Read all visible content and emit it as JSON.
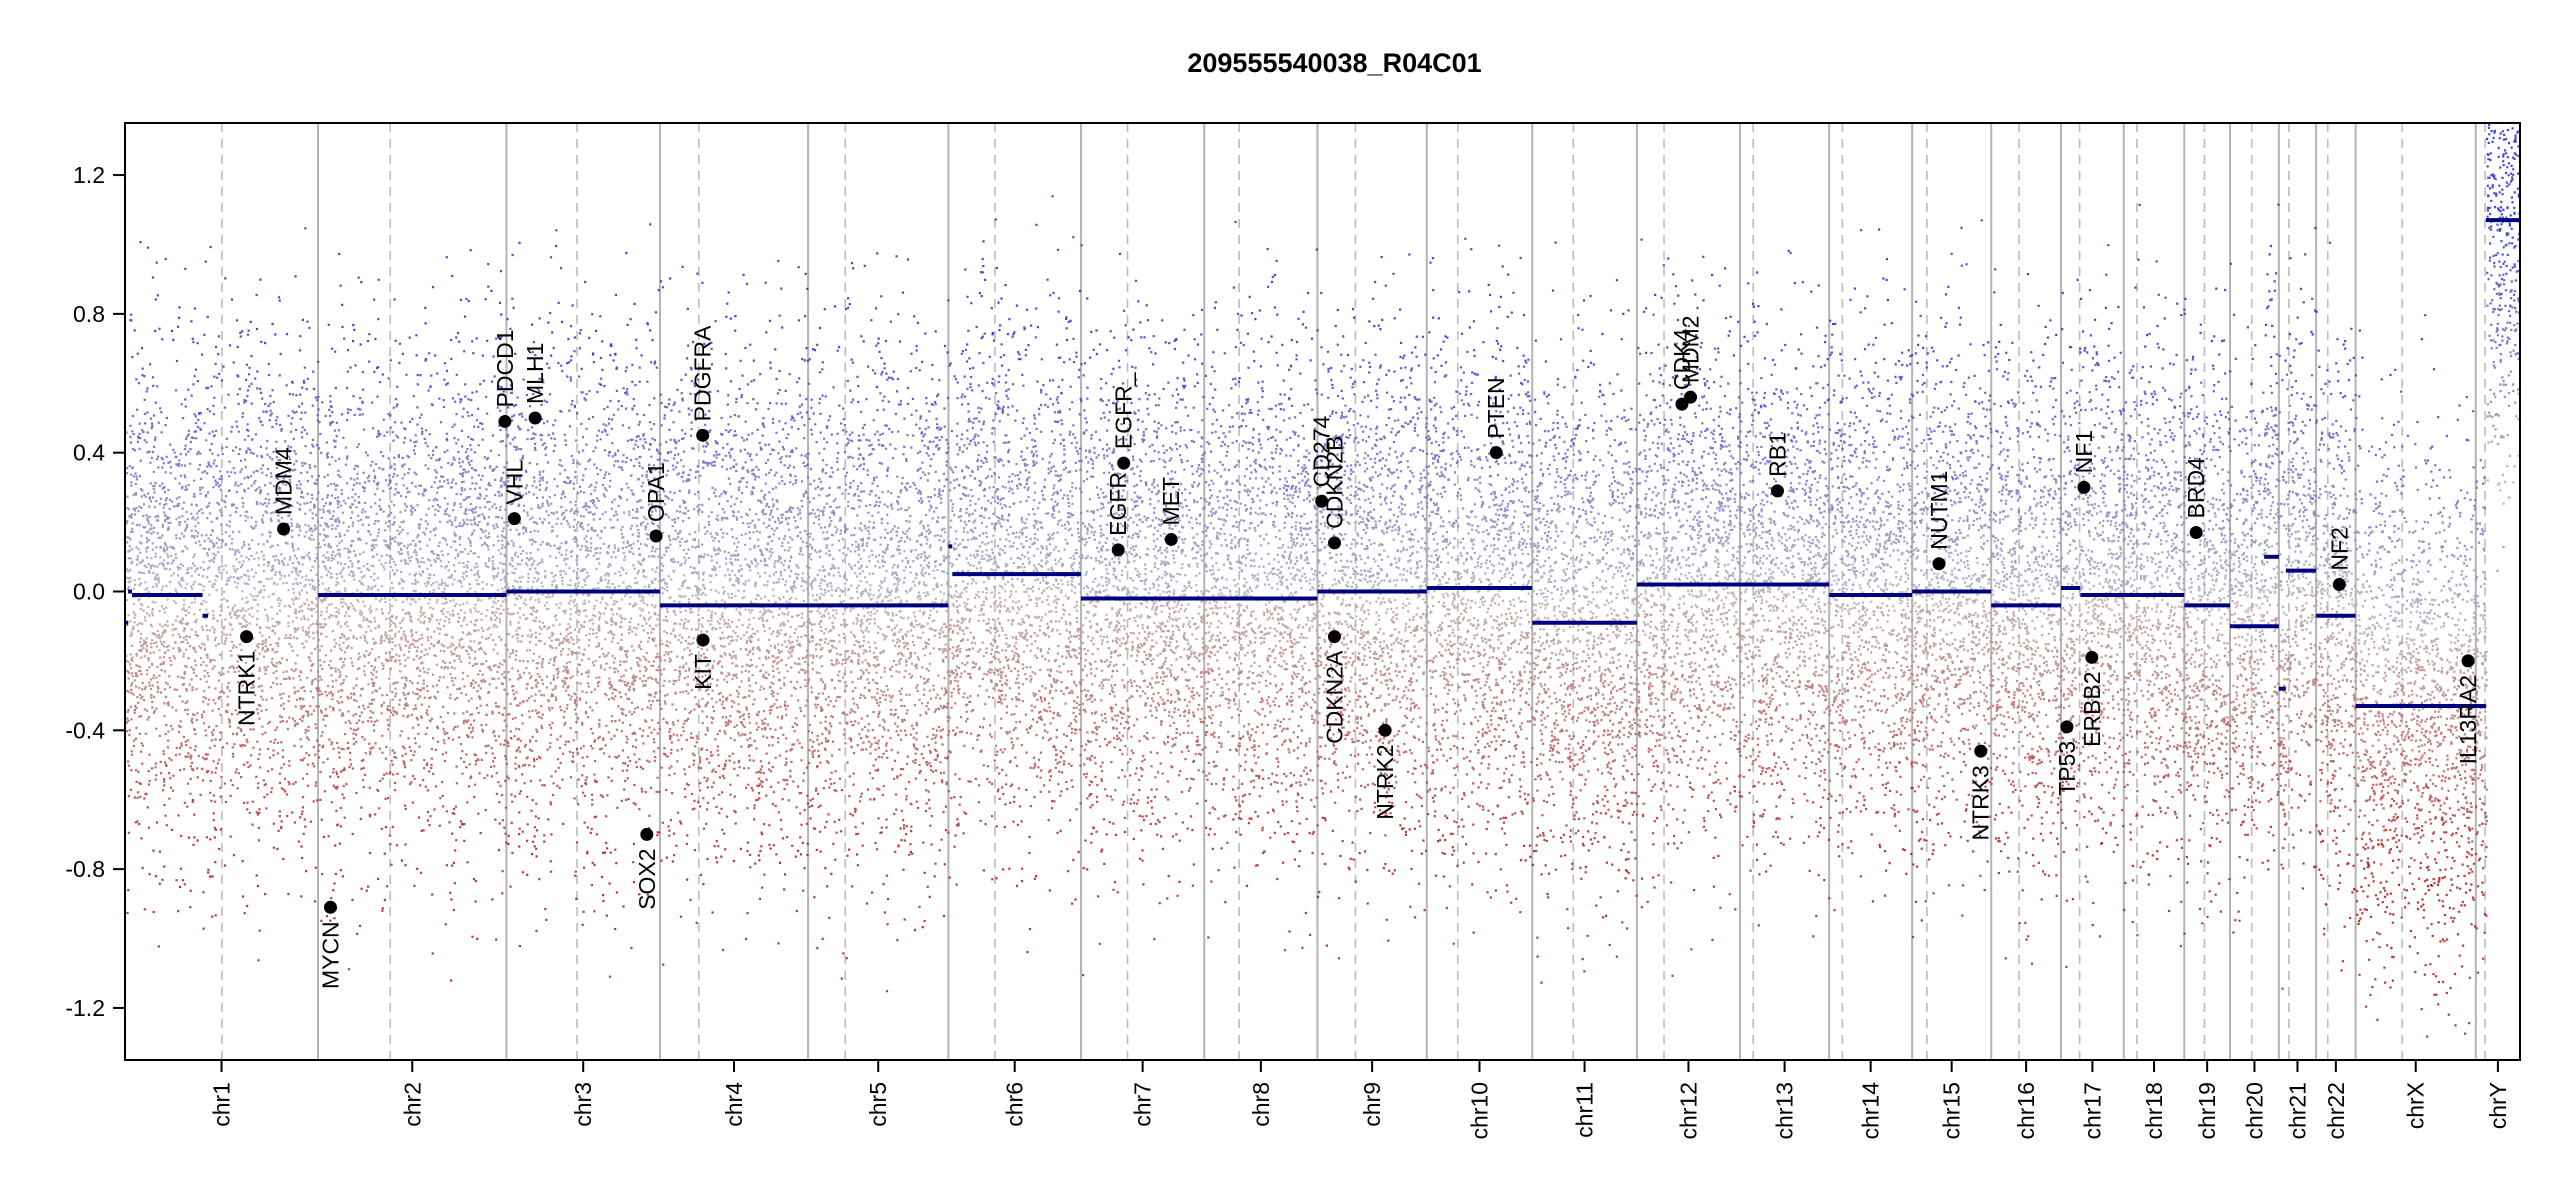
{
  "chart_data": {
    "type": "scatter",
    "title": "209555540038_R04C01",
    "xlabel": "",
    "ylabel": "",
    "ylim": [
      -1.35,
      1.35
    ],
    "y_ticks": [
      "1.2",
      "0.8",
      "0.4",
      "0.0",
      "-0.4",
      "-0.8",
      "-1.2"
    ],
    "y_tick_values": [
      1.2,
      0.8,
      0.4,
      0.0,
      -0.4,
      -0.8,
      -1.2
    ],
    "grid": false,
    "legend": "none",
    "colors": {
      "gain_points": "#2a2ad0",
      "loss_points": "#b01010",
      "neutral_points": "#a0a0a0",
      "segments": "#000080",
      "chrom_boundary": "#b4b4b4",
      "centromere": "#bcbcbc",
      "gene_marker": "#000000"
    },
    "chromosomes": [
      {
        "name": "chr1",
        "size": 249,
        "centromere": 125,
        "segments": [
          [
            0,
            4,
            -0.09
          ],
          [
            4,
            9,
            0.0
          ],
          [
            9,
            100,
            -0.01
          ],
          [
            100,
            107,
            -0.07
          ]
        ]
      },
      {
        "name": "chr2",
        "size": 243,
        "centromere": 93,
        "segments": [
          [
            0,
            243,
            -0.01
          ]
        ]
      },
      {
        "name": "chr3",
        "size": 198,
        "centromere": 91,
        "segments": [
          [
            0,
            198,
            0.0
          ]
        ]
      },
      {
        "name": "chr4",
        "size": 191,
        "centromere": 50,
        "segments": [
          [
            0,
            191,
            -0.04
          ]
        ]
      },
      {
        "name": "chr5",
        "size": 181,
        "centromere": 48,
        "segments": [
          [
            0,
            181,
            -0.04
          ]
        ]
      },
      {
        "name": "chr6",
        "size": 171,
        "centromere": 60,
        "segments": [
          [
            0,
            5,
            0.13
          ],
          [
            5,
            171,
            0.05
          ]
        ]
      },
      {
        "name": "chr7",
        "size": 159,
        "centromere": 60,
        "segments": [
          [
            0,
            159,
            -0.02
          ]
        ]
      },
      {
        "name": "chr8",
        "size": 146,
        "centromere": 45,
        "segments": [
          [
            0,
            146,
            -0.02
          ]
        ]
      },
      {
        "name": "chr9",
        "size": 141,
        "centromere": 49,
        "segments": [
          [
            0,
            141,
            0.0
          ]
        ]
      },
      {
        "name": "chr10",
        "size": 136,
        "centromere": 40,
        "segments": [
          [
            0,
            136,
            0.01
          ]
        ]
      },
      {
        "name": "chr11",
        "size": 135,
        "centromere": 53,
        "segments": [
          [
            0,
            135,
            -0.09
          ]
        ]
      },
      {
        "name": "chr12",
        "size": 133,
        "centromere": 35,
        "segments": [
          [
            0,
            133,
            0.02
          ]
        ]
      },
      {
        "name": "chr13",
        "size": 115,
        "centromere": 17,
        "segments": [
          [
            0,
            115,
            0.02
          ]
        ]
      },
      {
        "name": "chr14",
        "size": 107,
        "centromere": 17,
        "segments": [
          [
            0,
            107,
            -0.01
          ]
        ]
      },
      {
        "name": "chr15",
        "size": 102,
        "centromere": 19,
        "segments": [
          [
            0,
            102,
            0.0
          ]
        ]
      },
      {
        "name": "chr16",
        "size": 90,
        "centromere": 36,
        "segments": [
          [
            0,
            90,
            -0.04
          ]
        ]
      },
      {
        "name": "chr17",
        "size": 81,
        "centromere": 24,
        "segments": [
          [
            0,
            25,
            0.01
          ],
          [
            25,
            81,
            -0.01
          ]
        ]
      },
      {
        "name": "chr18",
        "size": 78,
        "centromere": 17,
        "segments": [
          [
            0,
            78,
            -0.01
          ]
        ]
      },
      {
        "name": "chr19",
        "size": 59,
        "centromere": 26,
        "segments": [
          [
            0,
            59,
            -0.04
          ]
        ]
      },
      {
        "name": "chr20",
        "size": 63,
        "centromere": 28,
        "segments": [
          [
            0,
            3,
            -0.1
          ],
          [
            3,
            63,
            -0.1
          ],
          [
            44,
            63,
            0.1
          ]
        ]
      },
      {
        "name": "chr21",
        "size": 48,
        "centromere": 13,
        "segments": [
          [
            0,
            9,
            -0.28
          ],
          [
            9,
            48,
            0.06
          ]
        ]
      },
      {
        "name": "chr22",
        "size": 51,
        "centromere": 15,
        "segments": [
          [
            0,
            51,
            -0.07
          ]
        ]
      },
      {
        "name": "chrX",
        "size": 155,
        "centromere": 60,
        "segments": [
          [
            0,
            155,
            -0.33
          ]
        ]
      },
      {
        "name": "chrY",
        "size": 57,
        "centromere": 12,
        "segments": [
          [
            0,
            13,
            -0.33
          ],
          [
            13,
            57,
            1.07
          ]
        ]
      }
    ],
    "genes": [
      {
        "label": "NTRK1",
        "chrom": "chr1",
        "pos": 156.8,
        "value": -0.13
      },
      {
        "label": "MDM4",
        "chrom": "chr1",
        "pos": 204.5,
        "value": 0.18
      },
      {
        "label": "MYCN",
        "chrom": "chr2",
        "pos": 16.0,
        "value": -0.91
      },
      {
        "label": "PDCD1",
        "chrom": "chr2",
        "pos": 241.0,
        "value": 0.49
      },
      {
        "label": "VHL",
        "chrom": "chr3",
        "pos": 10.2,
        "value": 0.21
      },
      {
        "label": "MLH1",
        "chrom": "chr3",
        "pos": 37.0,
        "value": 0.5
      },
      {
        "label": "OPA1",
        "chrom": "chr3",
        "pos": 193.0,
        "value": 0.16
      },
      {
        "label": "SOX2",
        "chrom": "chr3",
        "pos": 181.0,
        "value": -0.7
      },
      {
        "label": "PDGFRA",
        "chrom": "chr4",
        "pos": 55.1,
        "value": 0.45
      },
      {
        "label": "KIT",
        "chrom": "chr4",
        "pos": 55.5,
        "value": -0.14
      },
      {
        "label": "EGFR",
        "chrom": "chr7",
        "pos": 48.0,
        "value": 0.12
      },
      {
        "label": "EGFR_",
        "chrom": "chr7",
        "pos": 55.1,
        "value": 0.37
      },
      {
        "label": "MET",
        "chrom": "chr7",
        "pos": 116.4,
        "value": 0.15
      },
      {
        "label": "CD274",
        "chrom": "chr9",
        "pos": 5.5,
        "value": 0.26
      },
      {
        "label": "CDKN2B",
        "chrom": "chr9",
        "pos": 22.0,
        "value": 0.14
      },
      {
        "label": "CDKN2A",
        "chrom": "chr9",
        "pos": 21.9,
        "value": -0.13
      },
      {
        "label": "NTRK2",
        "chrom": "chr9",
        "pos": 87.3,
        "value": -0.4
      },
      {
        "label": "PTEN",
        "chrom": "chr10",
        "pos": 89.6,
        "value": 0.4
      },
      {
        "label": "CDK4",
        "chrom": "chr12",
        "pos": 58.1,
        "value": 0.54
      },
      {
        "label": "MDM2",
        "chrom": "chr12",
        "pos": 69.2,
        "value": 0.56
      },
      {
        "label": "RB1",
        "chrom": "chr13",
        "pos": 48.3,
        "value": 0.29
      },
      {
        "label": "NUTM1",
        "chrom": "chr15",
        "pos": 34.6,
        "value": 0.08
      },
      {
        "label": "NTRK3",
        "chrom": "chr15",
        "pos": 88.5,
        "value": -0.46
      },
      {
        "label": "TP53",
        "chrom": "chr17",
        "pos": 7.6,
        "value": -0.39
      },
      {
        "label": "NF1",
        "chrom": "chr17",
        "pos": 29.6,
        "value": 0.3
      },
      {
        "label": "ERBB2",
        "chrom": "chr17",
        "pos": 39.7,
        "value": -0.19
      },
      {
        "label": "BRD4",
        "chrom": "chr19",
        "pos": 15.3,
        "value": 0.17
      },
      {
        "label": "NF2",
        "chrom": "chr22",
        "pos": 29.9,
        "value": 0.02
      },
      {
        "label": "IL13RA2",
        "chrom": "chrX",
        "pos": 145.0,
        "value": -0.2
      }
    ]
  }
}
